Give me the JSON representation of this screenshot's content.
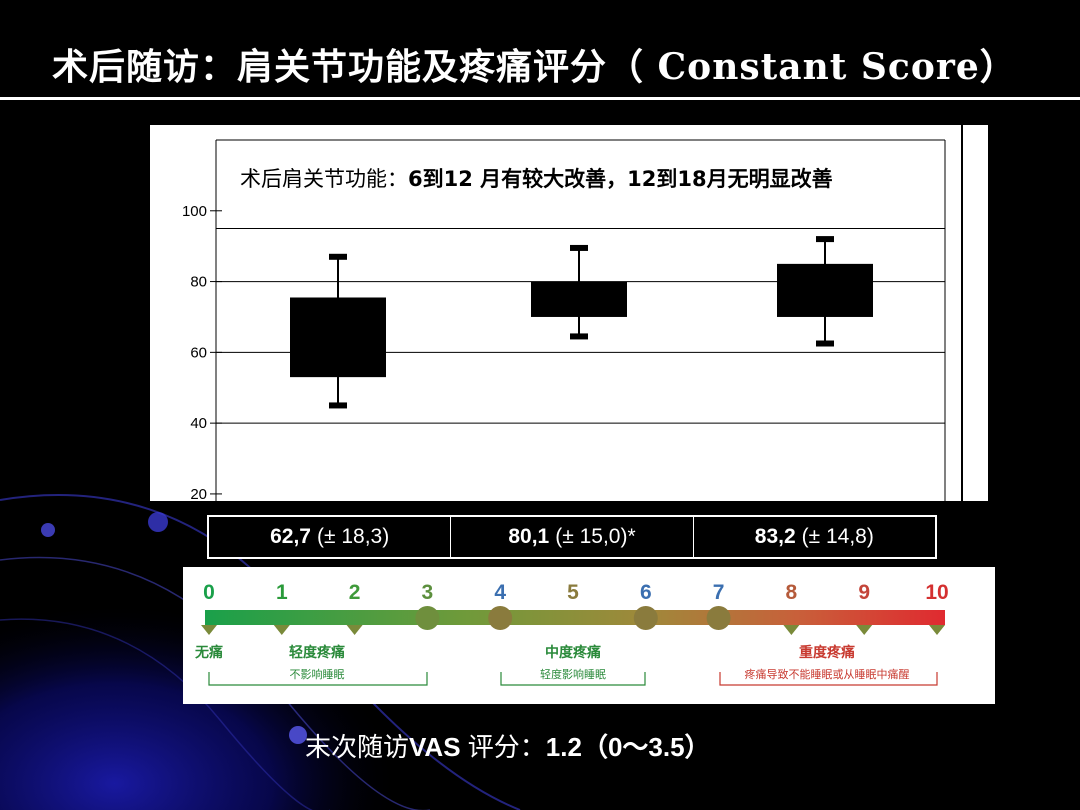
{
  "title": "术后随访：肩关节功能及疼痛评分（ Constant Score）",
  "chart_data": {
    "type": "box",
    "annotation_prefix": "术后肩关节功能：",
    "annotation_parts": [
      "6到12 月有较大改善，",
      "12到18月无明显改善"
    ],
    "y_ticks": [
      "100",
      "80",
      "60",
      "40",
      "20"
    ],
    "y_tick_values": [
      100,
      80,
      60,
      40,
      20
    ],
    "gridlines": [
      95,
      80,
      60,
      40
    ],
    "ylim": [
      18,
      120
    ],
    "boxes": [
      {
        "whisker_low": 45,
        "q1": 53,
        "q3": 75.5,
        "whisker_high": 87
      },
      {
        "whisker_low": 64.5,
        "q1": 70,
        "q3": 80,
        "whisker_high": 89.5
      },
      {
        "whisker_low": 62.5,
        "q1": 70,
        "q3": 85,
        "whisker_high": 92
      }
    ]
  },
  "stats": [
    {
      "mean": "62,7",
      "sd": "(± 18,3)"
    },
    {
      "mean": "80,1",
      "sd": "(± 15,0)*"
    },
    {
      "mean": "83,2",
      "sd": "(± 14,8)"
    }
  ],
  "vas_scale": {
    "numbers": [
      "0",
      "1",
      "2",
      "3",
      "4",
      "5",
      "6",
      "7",
      "8",
      "9",
      "10"
    ],
    "number_colors": [
      "#1aa04a",
      "#2a9a3a",
      "#3f9a3a",
      "#5c8f3d",
      "#3b6fb0",
      "#8a7b3d",
      "#3b6fb0",
      "#3b6fb0",
      "#b55a3a",
      "#c4453a",
      "#d43030"
    ],
    "levels": [
      {
        "label": "无痛",
        "note": ""
      },
      {
        "label": "轻度疼痛",
        "note": "不影响睡眠"
      },
      {
        "label": "中度疼痛",
        "note": "轻度影响睡眠"
      },
      {
        "label": "重度疼痛",
        "note": "疼痛导致不能睡眠或从睡眠中痛醒"
      }
    ]
  },
  "footer": {
    "prefix": "末次随访",
    "bold_label": "VAS",
    "middle": " 评分：",
    "value": "1.2",
    "range": "（0～3.5）"
  }
}
